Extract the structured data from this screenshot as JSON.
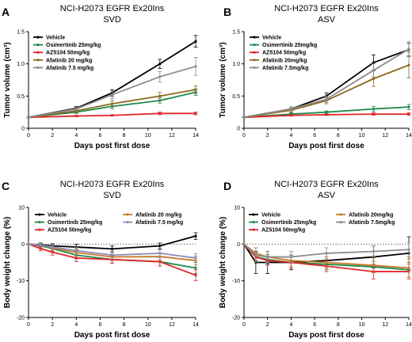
{
  "chart_data": [
    {
      "panel": "A",
      "type": "line",
      "title": "NCI-H2073 EGFR Ex20Ins",
      "subtitle": "SVD",
      "xlabel": "Days post first dose",
      "ylabel": "Tumor volume (cm³)",
      "xlim": [
        0,
        14
      ],
      "ylim": [
        0,
        1.5
      ],
      "xticks": [
        "0",
        "2",
        "4",
        "6",
        "8",
        "10",
        "12",
        "14"
      ],
      "yticks": [
        "0",
        "0.5",
        "1.0",
        "1.5"
      ],
      "legend_placement": "top-left",
      "series": [
        {
          "name": "Vehicle",
          "color": "#000000",
          "x": [
            0,
            4,
            7,
            11,
            14
          ],
          "y": [
            0.17,
            0.31,
            0.55,
            1.0,
            1.35
          ],
          "err": [
            0.01,
            0.03,
            0.05,
            0.07,
            0.09
          ]
        },
        {
          "name": "Osimertinib 25mg/kg",
          "color": "#1e8a4a",
          "x": [
            0,
            4,
            7,
            11,
            14
          ],
          "y": [
            0.17,
            0.25,
            0.34,
            0.43,
            0.56
          ],
          "err": [
            0.01,
            0.02,
            0.04,
            0.04,
            0.05
          ]
        },
        {
          "name": "AZ5104 50mg/kg",
          "color": "#e0262a",
          "x": [
            0,
            4,
            7,
            11,
            14
          ],
          "y": [
            0.17,
            0.19,
            0.2,
            0.23,
            0.23
          ],
          "err": [
            0.01,
            0.01,
            0.01,
            0.02,
            0.02
          ]
        },
        {
          "name": "Afatinib 20 mg/kg",
          "color": "#8c6a1c",
          "x": [
            0,
            4,
            7,
            11,
            14
          ],
          "y": [
            0.17,
            0.27,
            0.38,
            0.5,
            0.6
          ],
          "err": [
            0.01,
            0.03,
            0.05,
            0.06,
            0.06
          ]
        },
        {
          "name": "Afatinib 7.5 mg/kg",
          "color": "#8c8c8c",
          "x": [
            0,
            4,
            7,
            11,
            14
          ],
          "y": [
            0.17,
            0.3,
            0.52,
            0.8,
            0.96
          ],
          "err": [
            0.01,
            0.03,
            0.06,
            0.08,
            0.14
          ]
        }
      ]
    },
    {
      "panel": "B",
      "type": "line",
      "title": "NCI-H2073 EGFR Ex20Ins",
      "subtitle": "ASV",
      "xlabel": "Days post first dose",
      "ylabel": "Tumor volume (cm³)",
      "xlim": [
        0,
        14
      ],
      "ylim": [
        0,
        1.5
      ],
      "xticks": [
        "0",
        "2",
        "4",
        "6",
        "8",
        "10",
        "12",
        "14"
      ],
      "yticks": [
        "0",
        "0.5",
        "1.0",
        "1.5"
      ],
      "legend_placement": "top-left",
      "series": [
        {
          "name": "Vehicle",
          "color": "#000000",
          "x": [
            0,
            4,
            7,
            11,
            14
          ],
          "y": [
            0.17,
            0.3,
            0.5,
            1.02,
            1.22
          ],
          "err": [
            0.01,
            0.03,
            0.05,
            0.12,
            0.1
          ]
        },
        {
          "name": "Osimertinib 25mg/kg",
          "color": "#1e8a4a",
          "x": [
            0,
            4,
            7,
            11,
            14
          ],
          "y": [
            0.17,
            0.22,
            0.25,
            0.3,
            0.33
          ],
          "err": [
            0.01,
            0.02,
            0.02,
            0.04,
            0.04
          ]
        },
        {
          "name": "AZ5104 50mg/kg",
          "color": "#e0262a",
          "x": [
            0,
            4,
            7,
            11,
            14
          ],
          "y": [
            0.17,
            0.2,
            0.21,
            0.22,
            0.22
          ],
          "err": [
            0.01,
            0.01,
            0.01,
            0.02,
            0.02
          ]
        },
        {
          "name": "Afatinib 20mg/kg",
          "color": "#8c6a1c",
          "x": [
            0,
            4,
            7,
            11,
            14
          ],
          "y": [
            0.17,
            0.28,
            0.43,
            0.77,
            0.98
          ],
          "err": [
            0.01,
            0.03,
            0.05,
            0.12,
            0.2
          ]
        },
        {
          "name": "Afatinib 7.5mg/kg",
          "color": "#8c8c8c",
          "x": [
            0,
            4,
            7,
            11,
            14
          ],
          "y": [
            0.17,
            0.3,
            0.45,
            0.9,
            1.23
          ],
          "err": [
            0.01,
            0.03,
            0.05,
            0.1,
            0.12
          ]
        }
      ]
    },
    {
      "panel": "C",
      "type": "line",
      "title": "NCI-H2073 EGFR Ex20Ins",
      "subtitle": "SVD",
      "xlabel": "Days post first dose",
      "ylabel": "Body weight change (%)",
      "xlim": [
        0,
        14
      ],
      "ylim": [
        -20,
        10
      ],
      "xticks": [
        "0",
        "2",
        "4",
        "6",
        "8",
        "10",
        "12",
        "14"
      ],
      "yticks": [
        "-20",
        "-10",
        "0",
        "10"
      ],
      "legend_placement": "top",
      "series": [
        {
          "name": "Vehicle",
          "color": "#000000",
          "x": [
            0,
            1,
            2,
            4,
            7,
            11,
            14
          ],
          "y": [
            0,
            -0.2,
            -0.5,
            -0.8,
            -1.3,
            -0.5,
            2.2
          ],
          "err": [
            0,
            0.5,
            0.6,
            0.8,
            0.8,
            0.8,
            0.9
          ]
        },
        {
          "name": "Osimertinib 25mg/kg",
          "color": "#1e8a4a",
          "x": [
            0,
            1,
            2,
            4,
            7,
            11,
            14
          ],
          "y": [
            0,
            -0.5,
            -1.2,
            -3,
            -4.2,
            -4.8,
            -6.5
          ],
          "err": [
            0,
            0.6,
            0.8,
            1,
            1,
            1.2,
            1.5
          ]
        },
        {
          "name": "AZ5104 50mg/kg",
          "color": "#e0262a",
          "x": [
            0,
            1,
            2,
            4,
            7,
            11,
            14
          ],
          "y": [
            0,
            -1.2,
            -2.2,
            -3.8,
            -4.2,
            -4.8,
            -8.5
          ],
          "err": [
            0,
            0.6,
            0.8,
            1,
            1,
            1.2,
            1.5
          ]
        },
        {
          "name": "Afatinib 20 mg/kg",
          "color": "#c97a2a",
          "x": [
            0,
            1,
            2,
            4,
            7,
            11,
            14
          ],
          "y": [
            0,
            -0.3,
            -1,
            -2.3,
            -3.5,
            -3.4,
            -4.5
          ],
          "err": [
            0,
            0.5,
            0.8,
            1,
            1,
            1,
            1.2
          ]
        },
        {
          "name": "Afatinib 7.5 mg/kg",
          "color": "#8c8cb8",
          "x": [
            0,
            1,
            2,
            4,
            7,
            11,
            14
          ],
          "y": [
            0,
            -0.3,
            -0.8,
            -1.8,
            -3,
            -2.5,
            -3.8
          ],
          "err": [
            0,
            0.5,
            0.7,
            1,
            1,
            1,
            1.2
          ]
        }
      ]
    },
    {
      "panel": "D",
      "type": "line",
      "title": "NCI-H2073 EGFR Ex20Ins",
      "subtitle": "ASV",
      "xlabel": "Days post first dose",
      "ylabel": "Body weight change (%)",
      "xlim": [
        0,
        14
      ],
      "ylim": [
        -20,
        10
      ],
      "xticks": [
        "0",
        "2",
        "4",
        "6",
        "8",
        "10",
        "12",
        "14"
      ],
      "yticks": [
        "-20",
        "-10",
        "0",
        "10"
      ],
      "legend_placement": "top",
      "series": [
        {
          "name": "Vehicle",
          "color": "#000000",
          "x": [
            0,
            1,
            2,
            4,
            7,
            11,
            14
          ],
          "y": [
            0,
            -5,
            -5,
            -5,
            -4.5,
            -3.5,
            -2.5
          ],
          "err": [
            0,
            3,
            3,
            2,
            2,
            3,
            4.5
          ]
        },
        {
          "name": "Osimertinib 25mg/kg",
          "color": "#1e8a4a",
          "x": [
            0,
            1,
            2,
            4,
            7,
            11,
            14
          ],
          "y": [
            0,
            -3.5,
            -4.2,
            -5,
            -5.5,
            -6.2,
            -7
          ],
          "err": [
            0,
            1.2,
            1.3,
            1.5,
            1.5,
            1.5,
            2
          ]
        },
        {
          "name": "AZ5104 50mg/kg",
          "color": "#e0262a",
          "x": [
            0,
            1,
            2,
            4,
            7,
            11,
            14
          ],
          "y": [
            0,
            -3.5,
            -4.5,
            -5,
            -6,
            -7.5,
            -7.5
          ],
          "err": [
            0,
            1,
            1.2,
            1.5,
            1.5,
            2,
            2
          ]
        },
        {
          "name": "Afatinib 20mg/kg",
          "color": "#c97a2a",
          "x": [
            0,
            1,
            2,
            4,
            7,
            11,
            14
          ],
          "y": [
            0,
            -2.5,
            -3.5,
            -4.5,
            -5,
            -5.8,
            -6.5
          ],
          "err": [
            0,
            1.5,
            1.5,
            1.5,
            1.5,
            2,
            2.5
          ]
        },
        {
          "name": "Afatinib 7.5mg/kg",
          "color": "#8c8c8c",
          "x": [
            0,
            1,
            2,
            4,
            7,
            11,
            14
          ],
          "y": [
            0,
            -3,
            -3.5,
            -3.5,
            -2.5,
            -2,
            -1.5
          ],
          "err": [
            0,
            2,
            1.5,
            1.5,
            1.5,
            1.5,
            2
          ]
        }
      ]
    }
  ]
}
